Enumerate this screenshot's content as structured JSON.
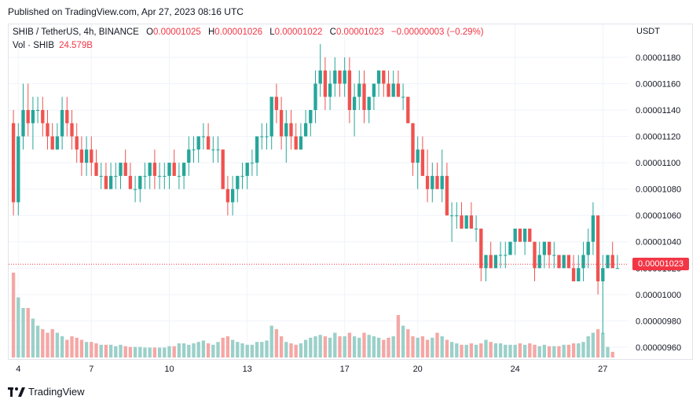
{
  "header": {
    "published": "Published on TradingView.com, Apr 27, 2023 08:16 UTC"
  },
  "legend": {
    "symbol": "SHIB / TetherUS, 4h, BINANCE",
    "o_label": "O",
    "o_value": "0.00001025",
    "h_label": "H",
    "h_value": "0.00001026",
    "l_label": "L",
    "l_value": "0.00001022",
    "c_label": "C",
    "c_value": "0.00001023",
    "change": "−0.00000003 (−0.29%)"
  },
  "volume_legend": {
    "label": "Vol · SHIB",
    "value": "24.579B"
  },
  "currency": "USDT",
  "last_price": "0.00001023",
  "footer": {
    "brand": "TradingView"
  },
  "colors": {
    "up": "#26a69a",
    "down": "#ef5350",
    "up_volume": "#9bd0c9",
    "down_volume": "#f5a7a5",
    "last_price": "#f23645",
    "grid": "#f0f3fa"
  },
  "chart_data": {
    "type": "candlestick",
    "symbol": "SHIB / TetherUS",
    "interval": "4h",
    "exchange": "BINANCE",
    "y_axis": {
      "ticks": [
        "0.00000960",
        "0.00000980",
        "0.00001000",
        "0.00001020",
        "0.00001040",
        "0.00001060",
        "0.00001080",
        "0.00001100",
        "0.00001120",
        "0.00001140",
        "0.00001160",
        "0.00001180"
      ],
      "range": [
        9.51e-06,
        1.205e-05
      ]
    },
    "x_axis": {
      "ticks": [
        "4",
        "7",
        "10",
        "13",
        "17",
        "20",
        "24",
        "27"
      ]
    },
    "grid": true,
    "candles_ohlc": [
      [
        1.13e-05,
        1.14e-05,
        1.06e-05,
        1.07e-05
      ],
      [
        1.07e-05,
        1.13e-05,
        1.06e-05,
        1.12e-05
      ],
      [
        1.12e-05,
        1.16e-05,
        1.11e-05,
        1.14e-05
      ],
      [
        1.14e-05,
        1.16e-05,
        1.12e-05,
        1.13e-05
      ],
      [
        1.13e-05,
        1.15e-05,
        1.11e-05,
        1.14e-05
      ],
      [
        1.14e-05,
        1.15e-05,
        1.13e-05,
        1.14e-05
      ],
      [
        1.14e-05,
        1.15e-05,
        1.12e-05,
        1.13e-05
      ],
      [
        1.13e-05,
        1.14e-05,
        1.11e-05,
        1.12e-05
      ],
      [
        1.12e-05,
        1.13e-05,
        1.11e-05,
        1.11e-05
      ],
      [
        1.11e-05,
        1.13e-05,
        1.11e-05,
        1.12e-05
      ],
      [
        1.12e-05,
        1.15e-05,
        1.11e-05,
        1.14e-05
      ],
      [
        1.14e-05,
        1.15e-05,
        1.12e-05,
        1.13e-05
      ],
      [
        1.13e-05,
        1.14e-05,
        1.11e-05,
        1.12e-05
      ],
      [
        1.12e-05,
        1.13e-05,
        1.1e-05,
        1.11e-05
      ],
      [
        1.11e-05,
        1.12e-05,
        1.09e-05,
        1.1e-05
      ],
      [
        1.1e-05,
        1.12e-05,
        1.09e-05,
        1.11e-05
      ],
      [
        1.11e-05,
        1.12e-05,
        1.09e-05,
        1.1e-05
      ],
      [
        1.1e-05,
        1.11e-05,
        1.09e-05,
        1.09e-05
      ],
      [
        1.09e-05,
        1.1e-05,
        1.08e-05,
        1.09e-05
      ],
      [
        1.09e-05,
        1.1e-05,
        1.08e-05,
        1.08e-05
      ],
      [
        1.08e-05,
        1.1e-05,
        1.08e-05,
        1.09e-05
      ],
      [
        1.09e-05,
        1.1e-05,
        1.08e-05,
        1.09e-05
      ],
      [
        1.09e-05,
        1.1e-05,
        1.08e-05,
        1.1e-05
      ],
      [
        1.1e-05,
        1.11e-05,
        1.09e-05,
        1.09e-05
      ],
      [
        1.09e-05,
        1.1e-05,
        1.08e-05,
        1.08e-05
      ],
      [
        1.08e-05,
        1.09e-05,
        1.07e-05,
        1.08e-05
      ],
      [
        1.08e-05,
        1.09e-05,
        1.07e-05,
        1.09e-05
      ],
      [
        1.09e-05,
        1.1e-05,
        1.08e-05,
        1.09e-05
      ],
      [
        1.09e-05,
        1.1e-05,
        1.08e-05,
        1.1e-05
      ],
      [
        1.1e-05,
        1.11e-05,
        1.08e-05,
        1.09e-05
      ],
      [
        1.09e-05,
        1.1e-05,
        1.08e-05,
        1.09e-05
      ],
      [
        1.09e-05,
        1.1e-05,
        1.08e-05,
        1.09e-05
      ],
      [
        1.09e-05,
        1.1e-05,
        1.08e-05,
        1.1e-05
      ],
      [
        1.1e-05,
        1.11e-05,
        1.09e-05,
        1.09e-05
      ],
      [
        1.09e-05,
        1.1e-05,
        1.08e-05,
        1.09e-05
      ],
      [
        1.09e-05,
        1.1e-05,
        1.08e-05,
        1.1e-05
      ],
      [
        1.1e-05,
        1.12e-05,
        1.09e-05,
        1.11e-05
      ],
      [
        1.11e-05,
        1.12e-05,
        1.1e-05,
        1.11e-05
      ],
      [
        1.11e-05,
        1.12e-05,
        1.1e-05,
        1.12e-05
      ],
      [
        1.12e-05,
        1.13e-05,
        1.11e-05,
        1.12e-05
      ],
      [
        1.12e-05,
        1.13e-05,
        1.11e-05,
        1.11e-05
      ],
      [
        1.11e-05,
        1.12e-05,
        1.1e-05,
        1.11e-05
      ],
      [
        1.11e-05,
        1.12e-05,
        1.1e-05,
        1.11e-05
      ],
      [
        1.11e-05,
        1.11e-05,
        1.08e-05,
        1.08e-05
      ],
      [
        1.08e-05,
        1.09e-05,
        1.06e-05,
        1.07e-05
      ],
      [
        1.07e-05,
        1.09e-05,
        1.06e-05,
        1.08e-05
      ],
      [
        1.08e-05,
        1.09e-05,
        1.07e-05,
        1.09e-05
      ],
      [
        1.09e-05,
        1.1e-05,
        1.08e-05,
        1.09e-05
      ],
      [
        1.09e-05,
        1.1e-05,
        1.08e-05,
        1.1e-05
      ],
      [
        1.1e-05,
        1.11e-05,
        1.09e-05,
        1.1e-05
      ],
      [
        1.1e-05,
        1.12e-05,
        1.09e-05,
        1.12e-05
      ],
      [
        1.12e-05,
        1.13e-05,
        1.11e-05,
        1.12e-05
      ],
      [
        1.12e-05,
        1.13e-05,
        1.11e-05,
        1.12e-05
      ],
      [
        1.12e-05,
        1.15e-05,
        1.11e-05,
        1.15e-05
      ],
      [
        1.15e-05,
        1.16e-05,
        1.13e-05,
        1.14e-05
      ],
      [
        1.14e-05,
        1.15e-05,
        1.11e-05,
        1.12e-05
      ],
      [
        1.12e-05,
        1.14e-05,
        1.1e-05,
        1.13e-05
      ],
      [
        1.13e-05,
        1.14e-05,
        1.11e-05,
        1.12e-05
      ],
      [
        1.12e-05,
        1.13e-05,
        1.11e-05,
        1.11e-05
      ],
      [
        1.11e-05,
        1.13e-05,
        1.11e-05,
        1.12e-05
      ],
      [
        1.12e-05,
        1.14e-05,
        1.12e-05,
        1.13e-05
      ],
      [
        1.13e-05,
        1.14e-05,
        1.12e-05,
        1.14e-05
      ],
      [
        1.14e-05,
        1.17e-05,
        1.13e-05,
        1.16e-05
      ],
      [
        1.16e-05,
        1.19e-05,
        1.15e-05,
        1.17e-05
      ],
      [
        1.17e-05,
        1.18e-05,
        1.14e-05,
        1.15e-05
      ],
      [
        1.15e-05,
        1.17e-05,
        1.14e-05,
        1.16e-05
      ],
      [
        1.16e-05,
        1.18e-05,
        1.15e-05,
        1.17e-05
      ],
      [
        1.17e-05,
        1.17e-05,
        1.15e-05,
        1.16e-05
      ],
      [
        1.16e-05,
        1.18e-05,
        1.15e-05,
        1.17e-05
      ],
      [
        1.17e-05,
        1.18e-05,
        1.13e-05,
        1.14e-05
      ],
      [
        1.14e-05,
        1.16e-05,
        1.12e-05,
        1.15e-05
      ],
      [
        1.15e-05,
        1.17e-05,
        1.14e-05,
        1.16e-05
      ],
      [
        1.16e-05,
        1.17e-05,
        1.13e-05,
        1.14e-05
      ],
      [
        1.14e-05,
        1.15e-05,
        1.13e-05,
        1.15e-05
      ],
      [
        1.15e-05,
        1.16e-05,
        1.14e-05,
        1.16e-05
      ],
      [
        1.16e-05,
        1.17e-05,
        1.15e-05,
        1.17e-05
      ],
      [
        1.17e-05,
        1.17e-05,
        1.15e-05,
        1.16e-05
      ],
      [
        1.16e-05,
        1.17e-05,
        1.15e-05,
        1.15e-05
      ],
      [
        1.15e-05,
        1.17e-05,
        1.15e-05,
        1.16e-05
      ],
      [
        1.16e-05,
        1.17e-05,
        1.15e-05,
        1.15e-05
      ],
      [
        1.15e-05,
        1.16e-05,
        1.14e-05,
        1.15e-05
      ],
      [
        1.15e-05,
        1.15e-05,
        1.13e-05,
        1.13e-05
      ],
      [
        1.13e-05,
        1.13e-05,
        1.09e-05,
        1.1e-05
      ],
      [
        1.1e-05,
        1.12e-05,
        1.08e-05,
        1.11e-05
      ],
      [
        1.11e-05,
        1.12e-05,
        1.09e-05,
        1.09e-05
      ],
      [
        1.09e-05,
        1.11e-05,
        1.07e-05,
        1.08e-05
      ],
      [
        1.08e-05,
        1.1e-05,
        1.07e-05,
        1.09e-05
      ],
      [
        1.09e-05,
        1.1e-05,
        1.08e-05,
        1.08e-05
      ],
      [
        1.08e-05,
        1.11e-05,
        1.07e-05,
        1.09e-05
      ],
      [
        1.09e-05,
        1.1e-05,
        1.06e-05,
        1.06e-05
      ],
      [
        1.06e-05,
        1.07e-05,
        1.04e-05,
        1.06e-05
      ],
      [
        1.06e-05,
        1.07e-05,
        1.05e-05,
        1.06e-05
      ],
      [
        1.06e-05,
        1.07e-05,
        1.05e-05,
        1.05e-05
      ],
      [
        1.05e-05,
        1.06e-05,
        1.05e-05,
        1.06e-05
      ],
      [
        1.06e-05,
        1.07e-05,
        1.05e-05,
        1.05e-05
      ],
      [
        1.05e-05,
        1.06e-05,
        1.04e-05,
        1.05e-05
      ],
      [
        1.05e-05,
        1.05e-05,
        1.01e-05,
        1.02e-05
      ],
      [
        1.02e-05,
        1.03e-05,
        1.01e-05,
        1.03e-05
      ],
      [
        1.03e-05,
        1.04e-05,
        1.02e-05,
        1.02e-05
      ],
      [
        1.02e-05,
        1.03e-05,
        1.02e-05,
        1.03e-05
      ],
      [
        1.03e-05,
        1.04e-05,
        1.02e-05,
        1.03e-05
      ],
      [
        1.03e-05,
        1.04e-05,
        1.02e-05,
        1.03e-05
      ],
      [
        1.03e-05,
        1.04e-05,
        1.03e-05,
        1.04e-05
      ],
      [
        1.04e-05,
        1.05e-05,
        1.03e-05,
        1.05e-05
      ],
      [
        1.05e-05,
        1.05e-05,
        1.04e-05,
        1.04e-05
      ],
      [
        1.04e-05,
        1.05e-05,
        1.03e-05,
        1.05e-05
      ],
      [
        1.05e-05,
        1.05e-05,
        1.04e-05,
        1.04e-05
      ],
      [
        1.04e-05,
        1.04e-05,
        1.01e-05,
        1.02e-05
      ],
      [
        1.02e-05,
        1.04e-05,
        1.02e-05,
        1.03e-05
      ],
      [
        1.03e-05,
        1.04e-05,
        1.02e-05,
        1.04e-05
      ],
      [
        1.04e-05,
        1.04e-05,
        1.02e-05,
        1.03e-05
      ],
      [
        1.03e-05,
        1.04e-05,
        1.02e-05,
        1.03e-05
      ],
      [
        1.03e-05,
        1.03e-05,
        1.02e-05,
        1.02e-05
      ],
      [
        1.02e-05,
        1.03e-05,
        1.02e-05,
        1.03e-05
      ],
      [
        1.03e-05,
        1.03e-05,
        1.02e-05,
        1.02e-05
      ],
      [
        1.02e-05,
        1.03e-05,
        1.01e-05,
        1.01e-05
      ],
      [
        1.01e-05,
        1.03e-05,
        1.01e-05,
        1.02e-05
      ],
      [
        1.02e-05,
        1.04e-05,
        1.01e-05,
        1.03e-05
      ],
      [
        1.03e-05,
        1.05e-05,
        1.02e-05,
        1.04e-05
      ],
      [
        1.04e-05,
        1.07e-05,
        1.03e-05,
        1.06e-05
      ],
      [
        1.06e-05,
        1.06e-05,
        1e-05,
        1.01e-05
      ],
      [
        1.01e-05,
        1.03e-05,
        9.7e-06,
        1.02e-05
      ],
      [
        1.02e-05,
        1.03e-05,
        1.02e-05,
        1.03e-05
      ],
      [
        1.03e-05,
        1.04e-05,
        1.02e-05,
        1.02e-05
      ],
      [
        1.02e-05,
        1.03e-05,
        1.02e-05,
        1.02e-05
      ]
    ],
    "volumes": [
      120,
      85,
      70,
      70,
      55,
      45,
      40,
      35,
      40,
      35,
      30,
      25,
      30,
      28,
      25,
      22,
      22,
      20,
      18,
      18,
      18,
      16,
      18,
      16,
      15,
      15,
      15,
      14,
      14,
      14,
      14,
      14,
      16,
      16,
      20,
      20,
      18,
      20,
      22,
      24,
      20,
      18,
      22,
      28,
      30,
      25,
      22,
      20,
      18,
      18,
      22,
      22,
      24,
      45,
      40,
      30,
      22,
      20,
      18,
      20,
      25,
      28,
      30,
      32,
      30,
      28,
      35,
      30,
      30,
      35,
      30,
      28,
      35,
      32,
      30,
      28,
      25,
      28,
      30,
      60,
      45,
      40,
      30,
      28,
      30,
      25,
      28,
      35,
      30,
      25,
      22,
      20,
      18,
      18,
      20,
      18,
      20,
      25,
      22,
      20,
      20,
      18,
      18,
      18,
      20,
      18,
      20,
      18,
      16,
      18,
      16,
      16,
      16,
      18,
      18,
      20,
      20,
      22,
      30,
      35,
      40,
      35,
      15,
      8
    ]
  }
}
